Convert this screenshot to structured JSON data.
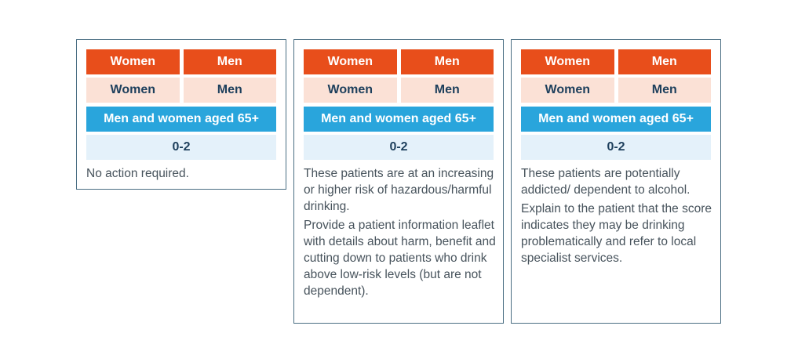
{
  "cards": [
    {
      "header": {
        "left": "Women",
        "right": "Men"
      },
      "subheader": {
        "left": "Women",
        "right": "Men"
      },
      "age_group": "Men and women aged 65+",
      "score": "0-2",
      "desc": [
        "No action required."
      ]
    },
    {
      "header": {
        "left": "Women",
        "right": "Men"
      },
      "subheader": {
        "left": "Women",
        "right": "Men"
      },
      "age_group": "Men and women aged 65+",
      "score": "0-2",
      "desc": [
        "These patients are at an increasing or higher risk of hazardous/harmful drinking.",
        "Provide a patient information leaflet with details about harm, benefit and cutting down to patients who drink above low-risk levels (but are not dependent)."
      ]
    },
    {
      "header": {
        "left": "Women",
        "right": "Men"
      },
      "subheader": {
        "left": "Women",
        "right": "Men"
      },
      "age_group": "Men and women aged 65+",
      "score": "0-2",
      "desc": [
        "These patients are potentially addicted/ dependent to alcohol.",
        "Explain to the patient that the score indicates they may be drinking problematically and refer to local specialist services."
      ]
    }
  ],
  "colors": {
    "header_orange": "#e84e1b",
    "subheader_peach": "#fbe1d6",
    "age_blue": "#29a5dc",
    "score_light_blue": "#e4f1fa",
    "border": "#4a6e83",
    "dark_text": "#1d3f5c",
    "body_text": "#47535c"
  }
}
